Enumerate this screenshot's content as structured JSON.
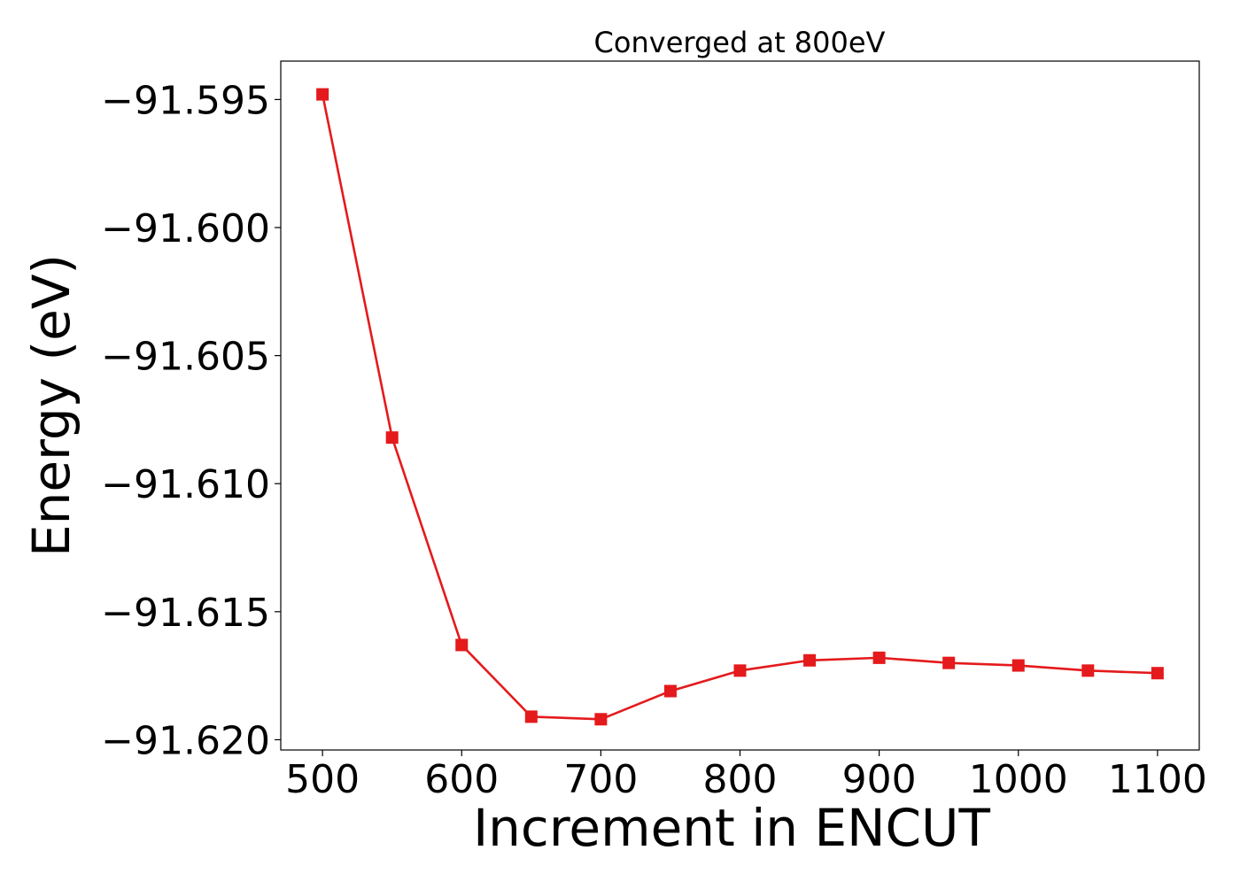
{
  "chart_data": {
    "type": "line",
    "title": "Converged at 800eV",
    "xlabel": "Increment in ENCUT",
    "ylabel": "Energy (eV)",
    "xlim": [
      470,
      1130
    ],
    "ylim": [
      -91.6204,
      -91.5935
    ],
    "xticks": [
      500,
      600,
      700,
      800,
      900,
      1000,
      1100
    ],
    "yticks": [
      -91.595,
      -91.6,
      -91.605,
      -91.61,
      -91.615,
      -91.62
    ],
    "ytick_labels": [
      "−91.595",
      "−91.600",
      "−91.605",
      "−91.610",
      "−91.615",
      "−91.620"
    ],
    "grid": false,
    "series": [
      {
        "color": "#e41a1c",
        "marker": "square",
        "x": [
          500,
          550,
          600,
          650,
          700,
          750,
          800,
          850,
          900,
          950,
          1000,
          1050,
          1100
        ],
        "y": [
          -91.5948,
          -91.6082,
          -91.6163,
          -91.6191,
          -91.6192,
          -91.6181,
          -91.6173,
          -91.6169,
          -91.6168,
          -91.617,
          -91.6171,
          -91.6173,
          -91.6174
        ]
      }
    ]
  }
}
